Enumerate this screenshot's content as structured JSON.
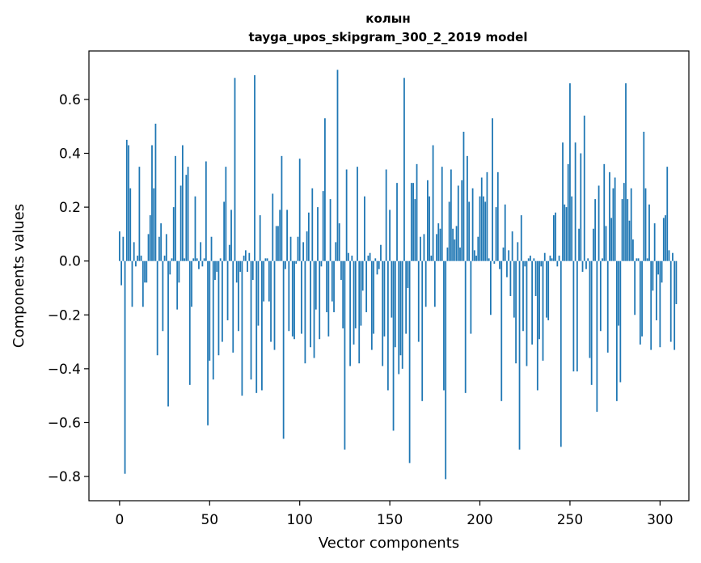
{
  "chart_data": {
    "type": "bar",
    "title_line1": "колын",
    "title_line2": "tayga_upos_skipgram_300_2_2019 model",
    "xlabel": "Vector components",
    "ylabel": "Components values",
    "xlim": [
      -17,
      316
    ],
    "ylim": [
      -0.89,
      0.78
    ],
    "xticks": [
      0,
      50,
      100,
      150,
      200,
      250,
      300
    ],
    "yticks": [
      -0.8,
      -0.6,
      -0.4,
      -0.2,
      0.0,
      0.2,
      0.4,
      0.6
    ],
    "ytick_labels": [
      "−0.8",
      "−0.6",
      "−0.4",
      "−0.2",
      "0.0",
      "0.2",
      "0.4",
      "0.6"
    ],
    "bar_color": "#1f77b4",
    "grid": false,
    "values": [
      0.11,
      -0.09,
      0.09,
      -0.79,
      0.45,
      0.43,
      0.27,
      -0.17,
      0.07,
      -0.02,
      0.02,
      0.35,
      0.02,
      -0.17,
      -0.08,
      -0.08,
      0.1,
      0.17,
      0.43,
      0.27,
      0.51,
      -0.35,
      0.09,
      0.14,
      -0.26,
      0.02,
      0.1,
      -0.54,
      -0.05,
      0.01,
      0.2,
      0.39,
      -0.18,
      -0.08,
      0.28,
      0.43,
      0.01,
      0.32,
      0.35,
      -0.46,
      -0.17,
      0.01,
      0.24,
      0.01,
      -0.03,
      0.07,
      -0.02,
      0.01,
      0.37,
      -0.61,
      -0.37,
      0.09,
      -0.44,
      -0.07,
      -0.04,
      -0.35,
      0.01,
      -0.3,
      0.22,
      0.35,
      -0.22,
      0.06,
      0.19,
      -0.34,
      0.68,
      -0.08,
      -0.26,
      -0.04,
      -0.5,
      0.02,
      0.04,
      -0.04,
      0.03,
      -0.44,
      -0.07,
      0.69,
      -0.49,
      -0.24,
      0.17,
      -0.48,
      -0.15,
      0.01,
      0.01,
      -0.15,
      -0.3,
      0.25,
      -0.33,
      0.13,
      0.13,
      0.19,
      0.39,
      -0.66,
      -0.03,
      0.19,
      -0.26,
      0.09,
      -0.28,
      -0.29,
      -0.01,
      0.09,
      0.38,
      -0.27,
      0.07,
      -0.38,
      0.11,
      0.18,
      -0.32,
      0.27,
      -0.36,
      -0.18,
      0.2,
      -0.29,
      -0.02,
      0.26,
      0.53,
      -0.19,
      -0.28,
      0.23,
      -0.15,
      -0.19,
      0.07,
      0.71,
      0.14,
      -0.07,
      -0.25,
      -0.7,
      0.34,
      0.03,
      -0.39,
      0.02,
      -0.31,
      -0.25,
      0.35,
      -0.38,
      -0.24,
      -0.11,
      0.24,
      -0.19,
      0.02,
      0.03,
      -0.33,
      -0.27,
      0.01,
      -0.05,
      -0.03,
      0.06,
      -0.39,
      -0.28,
      0.34,
      -0.48,
      0.19,
      -0.21,
      -0.63,
      -0.32,
      0.29,
      -0.42,
      -0.35,
      -0.4,
      0.68,
      -0.27,
      -0.1,
      -0.75,
      0.29,
      0.29,
      0.23,
      0.36,
      -0.3,
      0.09,
      -0.52,
      0.1,
      -0.17,
      0.3,
      0.24,
      0.02,
      0.43,
      -0.17,
      0.1,
      0.14,
      0.12,
      0.35,
      -0.48,
      -0.81,
      0.05,
      0.22,
      0.34,
      0.12,
      0.08,
      0.13,
      0.28,
      0.05,
      0.3,
      0.48,
      -0.49,
      0.39,
      0.22,
      -0.27,
      0.27,
      0.04,
      0.02,
      0.09,
      0.24,
      0.31,
      0.24,
      0.22,
      0.33,
      0.01,
      -0.2,
      0.53,
      -0.01,
      0.2,
      0.33,
      -0.03,
      -0.52,
      0.05,
      0.21,
      -0.06,
      0.04,
      -0.13,
      0.11,
      -0.21,
      -0.38,
      0.07,
      -0.7,
      0.17,
      -0.26,
      -0.02,
      -0.39,
      0.01,
      0.02,
      -0.31,
      0.01,
      -0.13,
      -0.48,
      -0.29,
      -0.02,
      -0.37,
      0.03,
      -0.21,
      -0.22,
      0.02,
      0.01,
      0.17,
      0.18,
      -0.02,
      0.02,
      -0.69,
      0.44,
      0.21,
      0.2,
      0.36,
      0.66,
      0.24,
      -0.41,
      0.44,
      -0.41,
      0.12,
      0.4,
      -0.04,
      0.54,
      -0.03,
      0.01,
      -0.36,
      -0.46,
      0.12,
      0.23,
      -0.56,
      0.28,
      -0.26,
      0.01,
      0.36,
      0.13,
      -0.34,
      0.33,
      0.16,
      0.27,
      0.31,
      -0.52,
      -0.24,
      -0.45,
      0.23,
      0.29,
      0.66,
      0.23,
      0.15,
      0.27,
      0.08,
      -0.2,
      0.01,
      0.01,
      -0.31,
      -0.28,
      0.48,
      0.27,
      0.01,
      0.21,
      -0.33,
      -0.11,
      0.14,
      -0.22,
      -0.05,
      -0.32,
      -0.08,
      0.16,
      0.17,
      0.35,
      0.04,
      -0.3,
      0.03,
      -0.33,
      -0.16
    ]
  }
}
